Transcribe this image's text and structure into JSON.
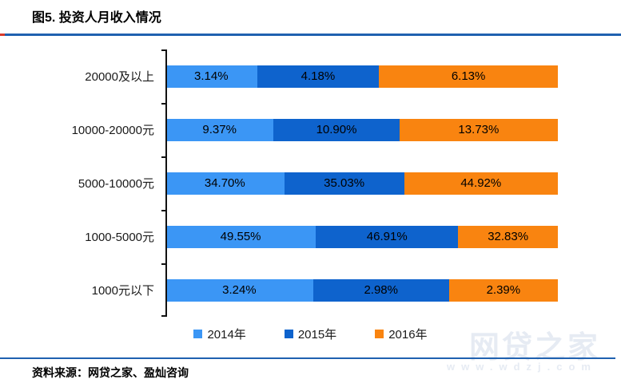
{
  "page": {
    "title": "图5. 投资人月收入情况",
    "source": "资料来源：网贷之家、盈灿咨询",
    "watermark": {
      "name": "网贷之家",
      "url": "www.wdzj.com"
    }
  },
  "colors": {
    "rule_blue": "#1f61b0",
    "accent_red": "#d93a2b",
    "axis": "#111111",
    "watermark_gray": "#e6ebf3",
    "series_2014": "#3b96f5",
    "series_2015": "#0e63cd",
    "series_2016": "#f98410"
  },
  "chart_data": {
    "type": "bar",
    "subtype": "horizontal-stacked",
    "stacking": "percent",
    "title": "图5. 投资人月收入情况",
    "categories": [
      "20000及以上",
      "10000-20000元",
      "5000-10000元",
      "1000-5000元",
      "1000元以下"
    ],
    "series": [
      {
        "name": "2014年",
        "color_key": "series_2014",
        "values": [
          3.14,
          9.37,
          34.7,
          49.55,
          3.24
        ]
      },
      {
        "name": "2015年",
        "color_key": "series_2015",
        "values": [
          4.18,
          10.9,
          35.03,
          46.91,
          2.98
        ]
      },
      {
        "name": "2016年",
        "color_key": "series_2016",
        "values": [
          6.13,
          13.73,
          44.92,
          32.83,
          2.39
        ]
      }
    ],
    "value_suffix": "%",
    "value_decimals": 2,
    "legend_position": "bottom",
    "grid": false,
    "xlabel": "",
    "ylabel": ""
  }
}
